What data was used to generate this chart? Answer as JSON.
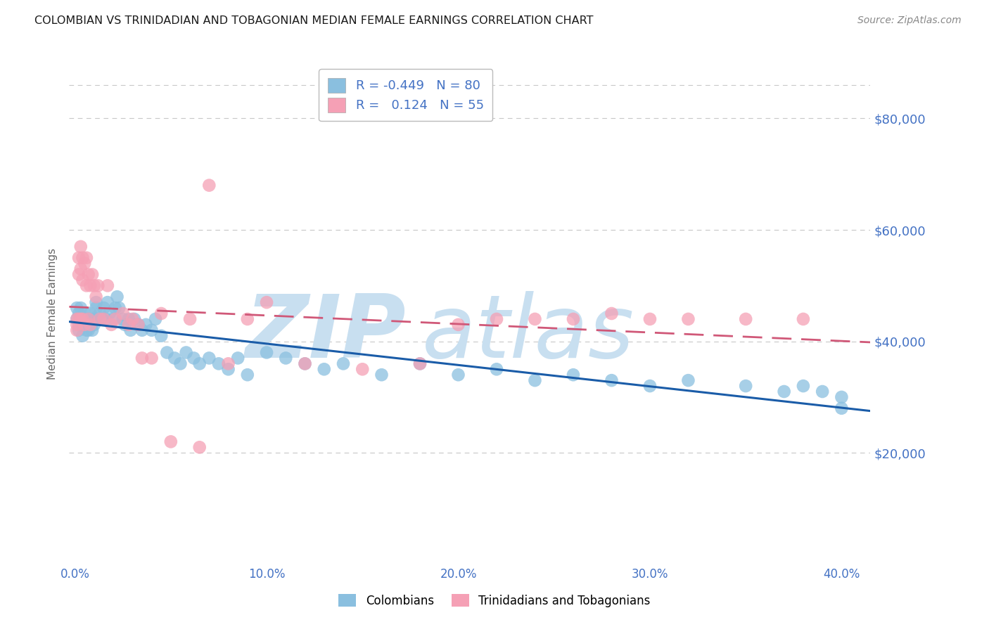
{
  "title": "COLOMBIAN VS TRINIDADIAN AND TOBAGONIAN MEDIAN FEMALE EARNINGS CORRELATION CHART",
  "source": "Source: ZipAtlas.com",
  "ylabel": "Median Female Earnings",
  "ytick_labels": [
    "$20,000",
    "$40,000",
    "$60,000",
    "$80,000"
  ],
  "ytick_vals": [
    20000,
    40000,
    60000,
    80000
  ],
  "ylim": [
    0,
    90000
  ],
  "xlim": [
    -0.003,
    0.415
  ],
  "colombians_R": -0.449,
  "colombians_N": 80,
  "trinidadians_R": 0.124,
  "trinidadians_N": 55,
  "blue_color": "#8abfdf",
  "pink_color": "#f5a0b5",
  "blue_line_color": "#1a5ca8",
  "pink_line_color": "#d05878",
  "axis_label_color": "#4472c4",
  "grid_color": "#c8c8c8",
  "watermark_zip_color": "#c8dff0",
  "watermark_atlas_color": "#c8dff0",
  "legend_label1": "Colombians",
  "legend_label2": "Trinidadians and Tobagonians",
  "blue_x": [
    0.001,
    0.001,
    0.002,
    0.002,
    0.002,
    0.003,
    0.003,
    0.003,
    0.004,
    0.004,
    0.004,
    0.005,
    0.005,
    0.005,
    0.006,
    0.006,
    0.006,
    0.007,
    0.007,
    0.008,
    0.008,
    0.009,
    0.009,
    0.01,
    0.01,
    0.011,
    0.011,
    0.012,
    0.013,
    0.014,
    0.015,
    0.016,
    0.017,
    0.018,
    0.02,
    0.021,
    0.022,
    0.023,
    0.025,
    0.026,
    0.028,
    0.029,
    0.031,
    0.033,
    0.035,
    0.037,
    0.04,
    0.042,
    0.045,
    0.048,
    0.052,
    0.055,
    0.058,
    0.062,
    0.065,
    0.07,
    0.075,
    0.08,
    0.085,
    0.09,
    0.1,
    0.11,
    0.12,
    0.13,
    0.14,
    0.16,
    0.18,
    0.2,
    0.22,
    0.24,
    0.26,
    0.28,
    0.3,
    0.32,
    0.35,
    0.37,
    0.38,
    0.39,
    0.4,
    0.4
  ],
  "blue_y": [
    44000,
    46000,
    43000,
    45000,
    42000,
    44000,
    43000,
    46000,
    44000,
    43000,
    41000,
    45000,
    43000,
    44000,
    44000,
    42000,
    43000,
    44000,
    42000,
    45000,
    43000,
    44000,
    42000,
    44000,
    43000,
    47000,
    46000,
    44000,
    45000,
    44000,
    46000,
    44000,
    47000,
    45000,
    44000,
    46000,
    48000,
    46000,
    44000,
    43000,
    44000,
    42000,
    44000,
    43000,
    42000,
    43000,
    42000,
    44000,
    41000,
    38000,
    37000,
    36000,
    38000,
    37000,
    36000,
    37000,
    36000,
    35000,
    37000,
    34000,
    38000,
    37000,
    36000,
    35000,
    36000,
    34000,
    36000,
    34000,
    35000,
    33000,
    34000,
    33000,
    32000,
    33000,
    32000,
    31000,
    32000,
    31000,
    30000,
    28000
  ],
  "pink_x": [
    0.001,
    0.001,
    0.001,
    0.002,
    0.002,
    0.002,
    0.003,
    0.003,
    0.003,
    0.004,
    0.004,
    0.004,
    0.005,
    0.005,
    0.006,
    0.006,
    0.007,
    0.007,
    0.008,
    0.008,
    0.009,
    0.01,
    0.011,
    0.012,
    0.013,
    0.015,
    0.017,
    0.019,
    0.021,
    0.025,
    0.028,
    0.03,
    0.033,
    0.035,
    0.04,
    0.045,
    0.05,
    0.06,
    0.065,
    0.07,
    0.08,
    0.09,
    0.1,
    0.12,
    0.15,
    0.18,
    0.2,
    0.22,
    0.24,
    0.26,
    0.28,
    0.3,
    0.32,
    0.35,
    0.38
  ],
  "pink_y": [
    44000,
    43000,
    42000,
    55000,
    52000,
    44000,
    57000,
    53000,
    44000,
    55000,
    51000,
    44000,
    54000,
    43000,
    55000,
    50000,
    52000,
    44000,
    50000,
    43000,
    52000,
    50000,
    48000,
    50000,
    44000,
    44000,
    50000,
    43000,
    44000,
    45000,
    43000,
    44000,
    43000,
    37000,
    37000,
    45000,
    22000,
    44000,
    21000,
    68000,
    36000,
    44000,
    47000,
    36000,
    35000,
    36000,
    43000,
    44000,
    44000,
    44000,
    45000,
    44000,
    44000,
    44000,
    44000
  ]
}
